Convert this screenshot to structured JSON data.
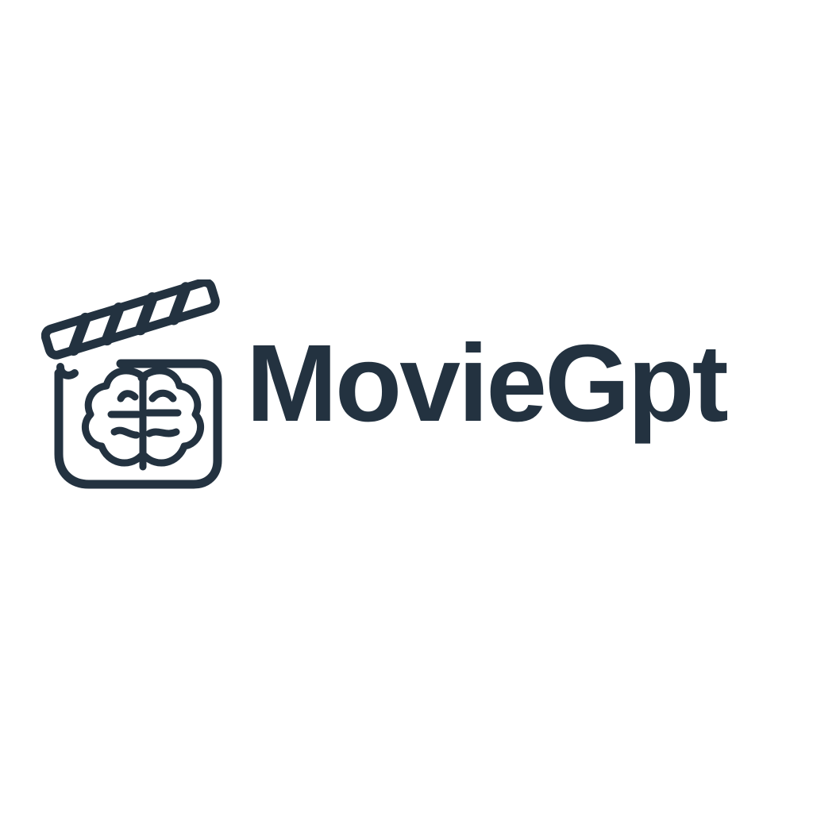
{
  "brand": {
    "name": "MovieGpt",
    "color": "#233240",
    "background": "#ffffff",
    "icon": "clapperboard-brain-icon"
  }
}
